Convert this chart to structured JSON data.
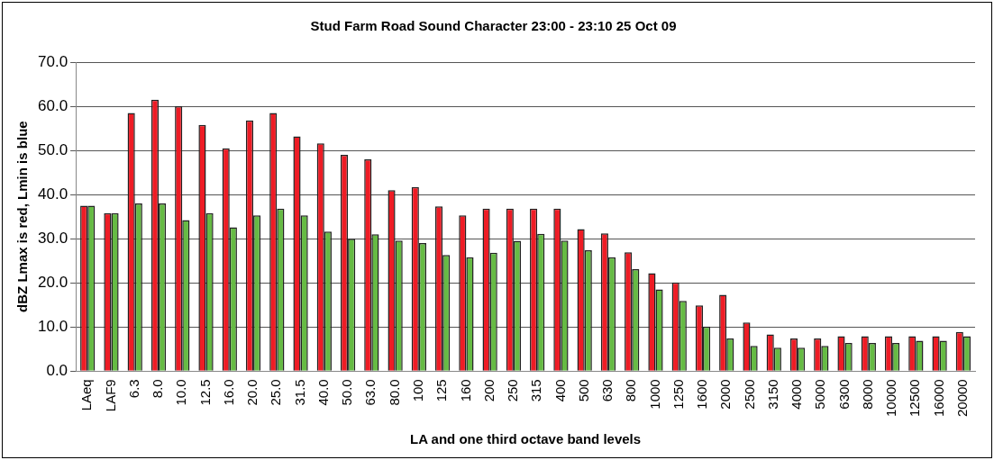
{
  "chart_data": {
    "type": "bar",
    "title": "Stud Farm Road Sound Character 23:00 - 23:10 25 Oct 09",
    "xlabel": "LA and one third octave band levels",
    "ylabel": "dBZ Lmax is red, Lmin is blue",
    "categories": [
      "LAeq",
      "LAF9",
      "6.3",
      "8.0",
      "10.0",
      "12.5",
      "16.0",
      "20.0",
      "25.0",
      "31.5",
      "40.0",
      "50.0",
      "63.0",
      "80.0",
      "100",
      "125",
      "160",
      "200",
      "250",
      "315",
      "400",
      "500",
      "630",
      "800",
      "1000",
      "1250",
      "1600",
      "2000",
      "2500",
      "3150",
      "4000",
      "5000",
      "6300",
      "8000",
      "10000",
      "12500",
      "16000",
      "20000"
    ],
    "series": [
      {
        "color": "#ee1c25",
        "values": [
          37.5,
          35.8,
          58.5,
          61.5,
          60,
          55.8,
          50.5,
          56.8,
          58.5,
          53.2,
          51.6,
          49,
          48,
          41,
          41.7,
          37.3,
          35.3,
          36.8,
          36.8,
          36.8,
          36.8,
          32.2,
          31.2,
          26.9,
          22.2,
          20.1,
          14.9,
          17.3,
          11,
          8.3,
          7.4,
          7.4,
          7.9,
          7.9,
          7.9,
          7.9,
          7.9,
          8.9
        ]
      },
      {
        "color": "#66bb44",
        "values": [
          37.5,
          35.8,
          38,
          38,
          34.2,
          35.8,
          32.6,
          35.3,
          36.8,
          35.3,
          31.6,
          30,
          31,
          29.6,
          29,
          26.3,
          25.8,
          26.8,
          29.5,
          31.1,
          29.6,
          27.4,
          25.8,
          23.1,
          18.5,
          15.9,
          10.1,
          7.4,
          5.7,
          5.3,
          5.3,
          5.7,
          6.4,
          6.4,
          6.4,
          6.9,
          6.9,
          7.9
        ]
      }
    ],
    "ylim": [
      0,
      70
    ],
    "yticks": [
      {
        "value": 0,
        "label": "0.0"
      },
      {
        "value": 10,
        "label": "10.0"
      },
      {
        "value": 20,
        "label": "20.0"
      },
      {
        "value": 30,
        "label": "30.0"
      },
      {
        "value": 40,
        "label": "40.0"
      },
      {
        "value": 50,
        "label": "50.0"
      },
      {
        "value": 60,
        "label": "60.0"
      },
      {
        "value": 70,
        "label": "70.0"
      }
    ],
    "grid": "y",
    "legend": false
  }
}
